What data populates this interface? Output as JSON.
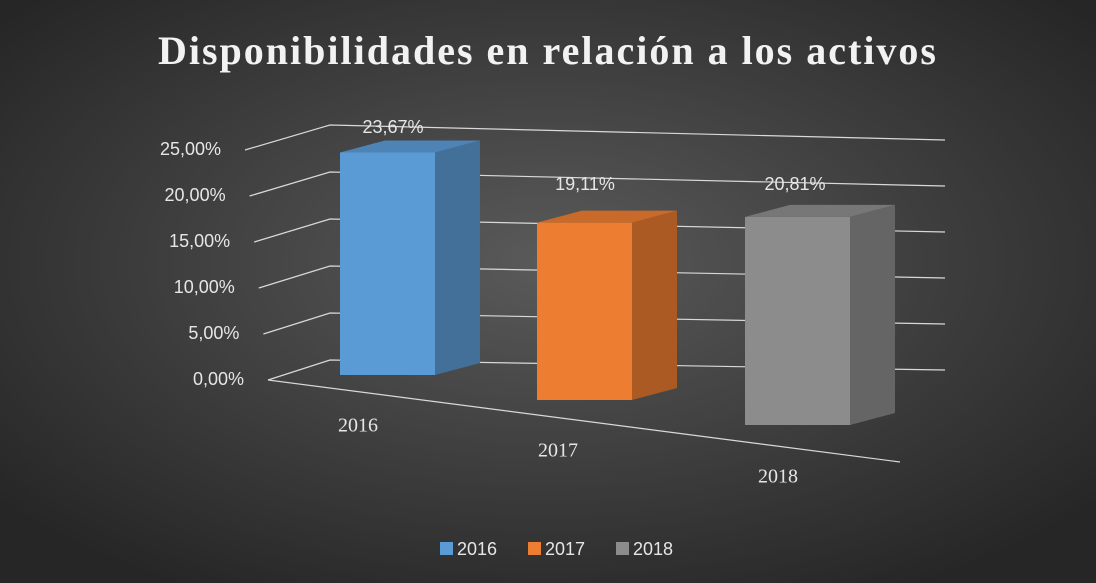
{
  "chart_data": {
    "type": "bar3d",
    "title": "Disponibilidades en relación a los activos",
    "categories": [
      "2016",
      "2017",
      "2018"
    ],
    "values": [
      23.67,
      19.11,
      20.81
    ],
    "value_labels": [
      "23,67%",
      "19,11%",
      "20,81%"
    ],
    "colors": [
      "#5b9bd5",
      "#ed7d31",
      "#8c8c8c"
    ],
    "ylim": [
      0,
      25
    ],
    "yticks": [
      {
        "value": 0,
        "label": "0,00%"
      },
      {
        "value": 5,
        "label": "5,00%"
      },
      {
        "value": 10,
        "label": "10,00%"
      },
      {
        "value": 15,
        "label": "15,00%"
      },
      {
        "value": 20,
        "label": "20,00%"
      },
      {
        "value": 25,
        "label": "25,00%"
      }
    ],
    "grid": true,
    "legend": "bottom"
  }
}
